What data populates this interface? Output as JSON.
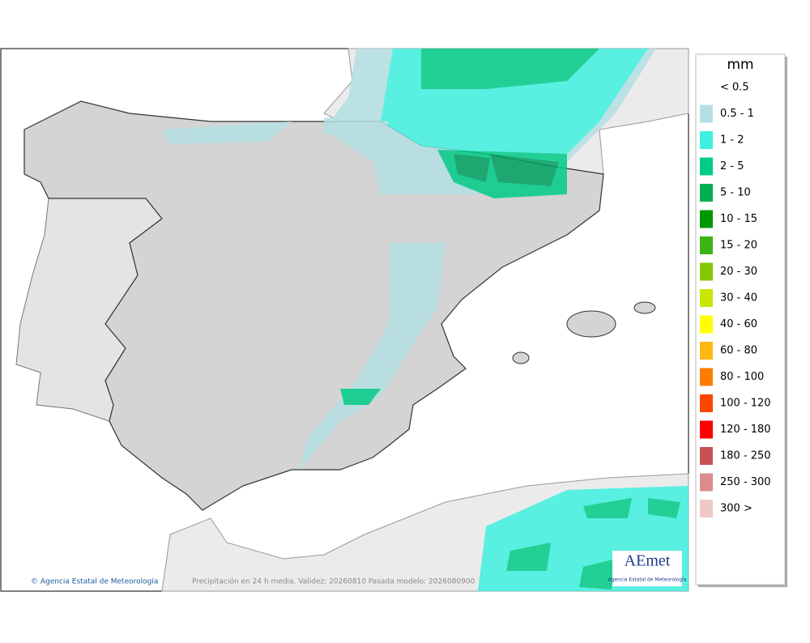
{
  "legend": {
    "unit": "mm",
    "entries": [
      {
        "label": "< 0.5",
        "color": null
      },
      {
        "label": "0.5 - 1",
        "color": "#b4e0e4"
      },
      {
        "label": "1 - 2",
        "color": "#40f0e0"
      },
      {
        "label": "2 - 5",
        "color": "#00cc88"
      },
      {
        "label": "5 - 10",
        "color": "#00b050"
      },
      {
        "label": "10 - 15",
        "color": "#009600"
      },
      {
        "label": "15 - 20",
        "color": "#3cb414"
      },
      {
        "label": "20 - 30",
        "color": "#82c800"
      },
      {
        "label": "30 - 40",
        "color": "#c8e600"
      },
      {
        "label": "40 - 60",
        "color": "#ffff00"
      },
      {
        "label": "60 - 80",
        "color": "#ffb914"
      },
      {
        "label": "80 - 100",
        "color": "#ff7d00"
      },
      {
        "label": "100 - 120",
        "color": "#ff4600"
      },
      {
        "label": "120 - 180",
        "color": "#ff0000"
      },
      {
        "label": "180 - 250",
        "color": "#c85050"
      },
      {
        "label": "250 - 300",
        "color": "#dc8c8c"
      },
      {
        "label": "300 >",
        "color": "#f0c8c8"
      }
    ]
  },
  "footer": {
    "credit": "© Agencia Estatal de Meteorología",
    "caption": "Precipitación en 24 h media. Validez: 20260810 Pasada modelo: 2026080900"
  },
  "logo": {
    "name": "AEmet",
    "subtitle": "Agencia Estatal de Meteorología"
  }
}
